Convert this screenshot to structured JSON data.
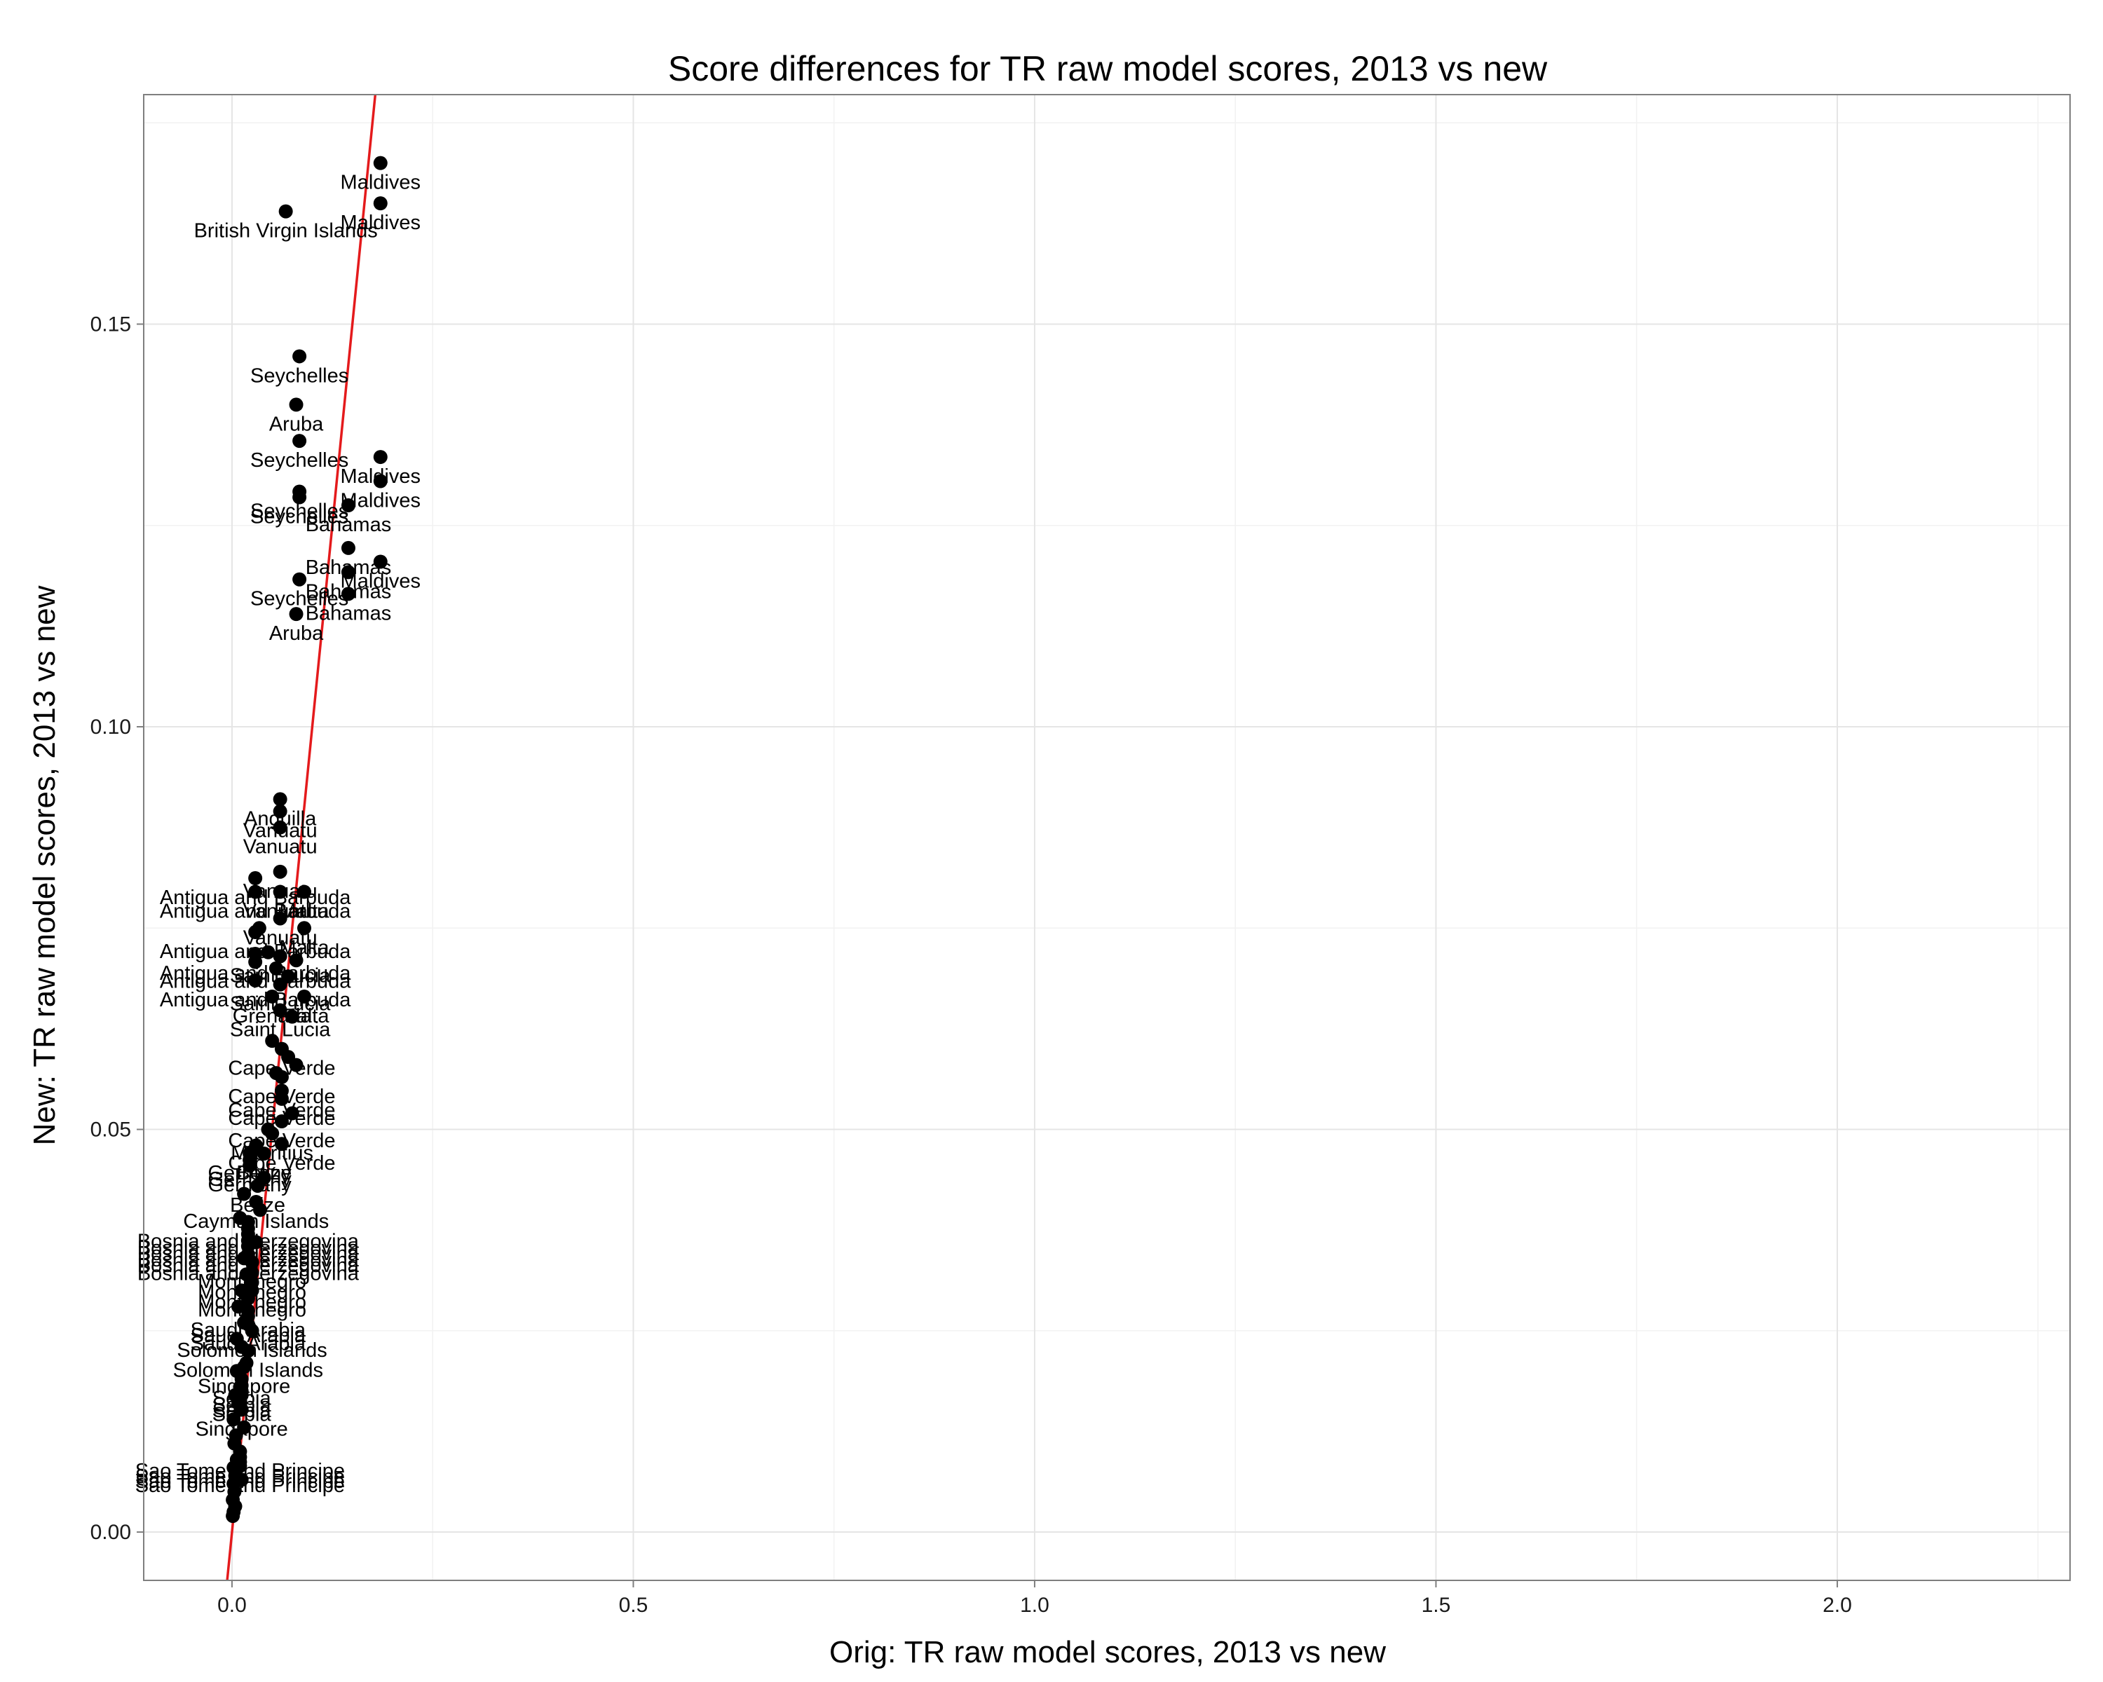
{
  "chart_data": {
    "type": "scatter",
    "title": "Score differences for TR raw model scores, 2013 vs new",
    "xlabel": "Orig: TR raw model scores, 2013 vs new",
    "ylabel": "New: TR raw model scores, 2013 vs new",
    "xlim": [
      -0.11,
      2.29
    ],
    "ylim": [
      -0.006,
      0.1785
    ],
    "x_ticks": [
      0.0,
      0.5,
      1.0,
      1.5,
      2.0
    ],
    "x_tick_labels": [
      "0.0",
      "0.5",
      "1.0",
      "1.5",
      "2.0"
    ],
    "y_ticks": [
      0.0,
      0.05,
      0.1,
      0.15
    ],
    "y_tick_labels": [
      "0.00",
      "0.05",
      "0.10",
      "0.15"
    ],
    "grid": true,
    "reference_line": {
      "color": "#e41a1c",
      "slope": 1,
      "intercept": 0
    },
    "marker_color": "#000000",
    "points": [
      {
        "x": 0.185,
        "y": 0.17,
        "label": "Maldives"
      },
      {
        "x": 0.185,
        "y": 0.165,
        "label": "Maldives"
      },
      {
        "x": 0.067,
        "y": 0.164,
        "label": "British Virgin Islands"
      },
      {
        "x": 0.084,
        "y": 0.146,
        "label": "Seychelles"
      },
      {
        "x": 0.08,
        "y": 0.14,
        "label": "Aruba"
      },
      {
        "x": 0.084,
        "y": 0.1355,
        "label": "Seychelles"
      },
      {
        "x": 0.185,
        "y": 0.1335,
        "label": "Maldives"
      },
      {
        "x": 0.185,
        "y": 0.1305,
        "label": "Maldives"
      },
      {
        "x": 0.084,
        "y": 0.1292,
        "label": "Seychelles"
      },
      {
        "x": 0.084,
        "y": 0.1285,
        "label": "Seychelles"
      },
      {
        "x": 0.145,
        "y": 0.1275,
        "label": "Bahamas"
      },
      {
        "x": 0.145,
        "y": 0.1222,
        "label": "Bahamas"
      },
      {
        "x": 0.185,
        "y": 0.1205,
        "label": "Maldives"
      },
      {
        "x": 0.145,
        "y": 0.1192,
        "label": "Bahamas"
      },
      {
        "x": 0.084,
        "y": 0.1183,
        "label": "Seychelles"
      },
      {
        "x": 0.145,
        "y": 0.1165,
        "label": "Bahamas"
      },
      {
        "x": 0.08,
        "y": 0.114,
        "label": "Aruba"
      },
      {
        "x": 0.06,
        "y": 0.091,
        "label": "Anguilla"
      },
      {
        "x": 0.06,
        "y": 0.0895,
        "label": "Vanuatu"
      },
      {
        "x": 0.06,
        "y": 0.0875,
        "label": "Vanuatu"
      },
      {
        "x": 0.06,
        "y": 0.082,
        "label": "Vanuatu"
      },
      {
        "x": 0.029,
        "y": 0.0812,
        "label": "Antigua and Barbuda"
      },
      {
        "x": 0.029,
        "y": 0.0795,
        "label": "Antigua and Barbuda"
      },
      {
        "x": 0.06,
        "y": 0.0795,
        "label": "Vanuatu"
      },
      {
        "x": 0.09,
        "y": 0.0795,
        "label": "Malta"
      },
      {
        "x": 0.06,
        "y": 0.0762,
        "label": "Vanuatu"
      },
      {
        "x": 0.029,
        "y": 0.0745,
        "label": "Antigua and Barbuda"
      },
      {
        "x": 0.09,
        "y": 0.075,
        "label": "Malta"
      },
      {
        "x": 0.029,
        "y": 0.0718,
        "label": "Antigua and Barbuda"
      },
      {
        "x": 0.029,
        "y": 0.0708,
        "label": "Antigua and Barbuda"
      },
      {
        "x": 0.06,
        "y": 0.0715,
        "label": "Saint Lucia"
      },
      {
        "x": 0.029,
        "y": 0.0685,
        "label": "Antigua and Barbuda"
      },
      {
        "x": 0.06,
        "y": 0.068,
        "label": "Saint Lucia"
      },
      {
        "x": 0.05,
        "y": 0.0665,
        "label": "Grenada"
      },
      {
        "x": 0.06,
        "y": 0.0648,
        "label": "Saint Lucia"
      },
      {
        "x": 0.09,
        "y": 0.0665,
        "label": "Malta"
      },
      {
        "x": 0.062,
        "y": 0.06,
        "label": "Cape Verde"
      },
      {
        "x": 0.062,
        "y": 0.0565,
        "label": "Cape Verde"
      },
      {
        "x": 0.062,
        "y": 0.0548,
        "label": "Cape Verde"
      },
      {
        "x": 0.062,
        "y": 0.0538,
        "label": "Cape Verde"
      },
      {
        "x": 0.062,
        "y": 0.051,
        "label": "Cape Verde"
      },
      {
        "x": 0.05,
        "y": 0.0495,
        "label": "Mauritius"
      },
      {
        "x": 0.062,
        "y": 0.0482,
        "label": "Cape Verde"
      },
      {
        "x": 0.04,
        "y": 0.047,
        "label": "Belize"
      },
      {
        "x": 0.022,
        "y": 0.047,
        "label": "Germany"
      },
      {
        "x": 0.022,
        "y": 0.0462,
        "label": "Germany"
      },
      {
        "x": 0.022,
        "y": 0.0455,
        "label": "Germany"
      },
      {
        "x": 0.032,
        "y": 0.043,
        "label": "Belize"
      },
      {
        "x": 0.03,
        "y": 0.041,
        "label": "Cayman Islands"
      },
      {
        "x": 0.02,
        "y": 0.0385,
        "label": "Bosnia and Herzegovina"
      },
      {
        "x": 0.02,
        "y": 0.0377,
        "label": "Bosnia and Herzegovina"
      },
      {
        "x": 0.02,
        "y": 0.037,
        "label": "Bosnia and Herzegovina"
      },
      {
        "x": 0.02,
        "y": 0.0362,
        "label": "Bosnia and Herzegovina"
      },
      {
        "x": 0.02,
        "y": 0.0355,
        "label": "Bosnia and Herzegovina"
      },
      {
        "x": 0.02,
        "y": 0.0345,
        "label": "Bosnia and Herzegovina"
      },
      {
        "x": 0.025,
        "y": 0.0335,
        "label": "Montenegro"
      },
      {
        "x": 0.025,
        "y": 0.0322,
        "label": "Montenegro"
      },
      {
        "x": 0.025,
        "y": 0.031,
        "label": "Montenegro"
      },
      {
        "x": 0.025,
        "y": 0.03,
        "label": "Montenegro"
      },
      {
        "x": 0.02,
        "y": 0.0275,
        "label": "Saudi Arabia"
      },
      {
        "x": 0.02,
        "y": 0.0268,
        "label": "Saudi Arabia"
      },
      {
        "x": 0.02,
        "y": 0.0258,
        "label": "Saudi Arabia"
      },
      {
        "x": 0.025,
        "y": 0.025,
        "label": "Solomon Islands"
      },
      {
        "x": 0.02,
        "y": 0.0225,
        "label": "Solomon Islands"
      },
      {
        "x": 0.015,
        "y": 0.0205,
        "label": "Singapore"
      },
      {
        "x": 0.012,
        "y": 0.019,
        "label": "Serbia"
      },
      {
        "x": 0.012,
        "y": 0.0182,
        "label": "Serbia"
      },
      {
        "x": 0.012,
        "y": 0.0175,
        "label": "Serbia"
      },
      {
        "x": 0.012,
        "y": 0.017,
        "label": "Serbia"
      },
      {
        "x": 0.012,
        "y": 0.0152,
        "label": "Singapore"
      },
      {
        "x": 0.01,
        "y": 0.01,
        "label": "Sao Tome and Principe"
      },
      {
        "x": 0.01,
        "y": 0.0093,
        "label": "Sao Tome and Principe"
      },
      {
        "x": 0.01,
        "y": 0.0087,
        "label": "Sao Tome and Principe"
      },
      {
        "x": 0.01,
        "y": 0.0082,
        "label": "Sao Tome and Principe"
      },
      {
        "x": 0.034,
        "y": 0.075
      },
      {
        "x": 0.045,
        "y": 0.072
      },
      {
        "x": 0.055,
        "y": 0.07
      },
      {
        "x": 0.07,
        "y": 0.069
      },
      {
        "x": 0.08,
        "y": 0.071
      },
      {
        "x": 0.075,
        "y": 0.064
      },
      {
        "x": 0.05,
        "y": 0.061
      },
      {
        "x": 0.07,
        "y": 0.059
      },
      {
        "x": 0.08,
        "y": 0.058
      },
      {
        "x": 0.055,
        "y": 0.057
      },
      {
        "x": 0.075,
        "y": 0.052
      },
      {
        "x": 0.045,
        "y": 0.05
      },
      {
        "x": 0.03,
        "y": 0.048
      },
      {
        "x": 0.04,
        "y": 0.044
      },
      {
        "x": 0.015,
        "y": 0.042
      },
      {
        "x": 0.035,
        "y": 0.04
      },
      {
        "x": 0.01,
        "y": 0.039
      },
      {
        "x": 0.03,
        "y": 0.036
      },
      {
        "x": 0.015,
        "y": 0.034
      },
      {
        "x": 0.018,
        "y": 0.032
      },
      {
        "x": 0.012,
        "y": 0.03
      },
      {
        "x": 0.02,
        "y": 0.029
      },
      {
        "x": 0.008,
        "y": 0.028
      },
      {
        "x": 0.015,
        "y": 0.026
      },
      {
        "x": 0.006,
        "y": 0.024
      },
      {
        "x": 0.012,
        "y": 0.023
      },
      {
        "x": 0.018,
        "y": 0.021
      },
      {
        "x": 0.006,
        "y": 0.02
      },
      {
        "x": 0.01,
        "y": 0.018
      },
      {
        "x": 0.004,
        "y": 0.017
      },
      {
        "x": 0.008,
        "y": 0.016
      },
      {
        "x": 0.002,
        "y": 0.014
      },
      {
        "x": 0.015,
        "y": 0.013
      },
      {
        "x": 0.005,
        "y": 0.012
      },
      {
        "x": 0.003,
        "y": 0.011
      },
      {
        "x": 0.006,
        "y": 0.009
      },
      {
        "x": 0.002,
        "y": 0.008
      },
      {
        "x": 0.004,
        "y": 0.007
      },
      {
        "x": 0.002,
        "y": 0.006
      },
      {
        "x": 0.012,
        "y": 0.0065
      },
      {
        "x": 0.003,
        "y": 0.005
      },
      {
        "x": 0.001,
        "y": 0.004
      },
      {
        "x": 0.004,
        "y": 0.0032
      },
      {
        "x": 0.002,
        "y": 0.0025
      },
      {
        "x": 0.001,
        "y": 0.002
      }
    ]
  }
}
